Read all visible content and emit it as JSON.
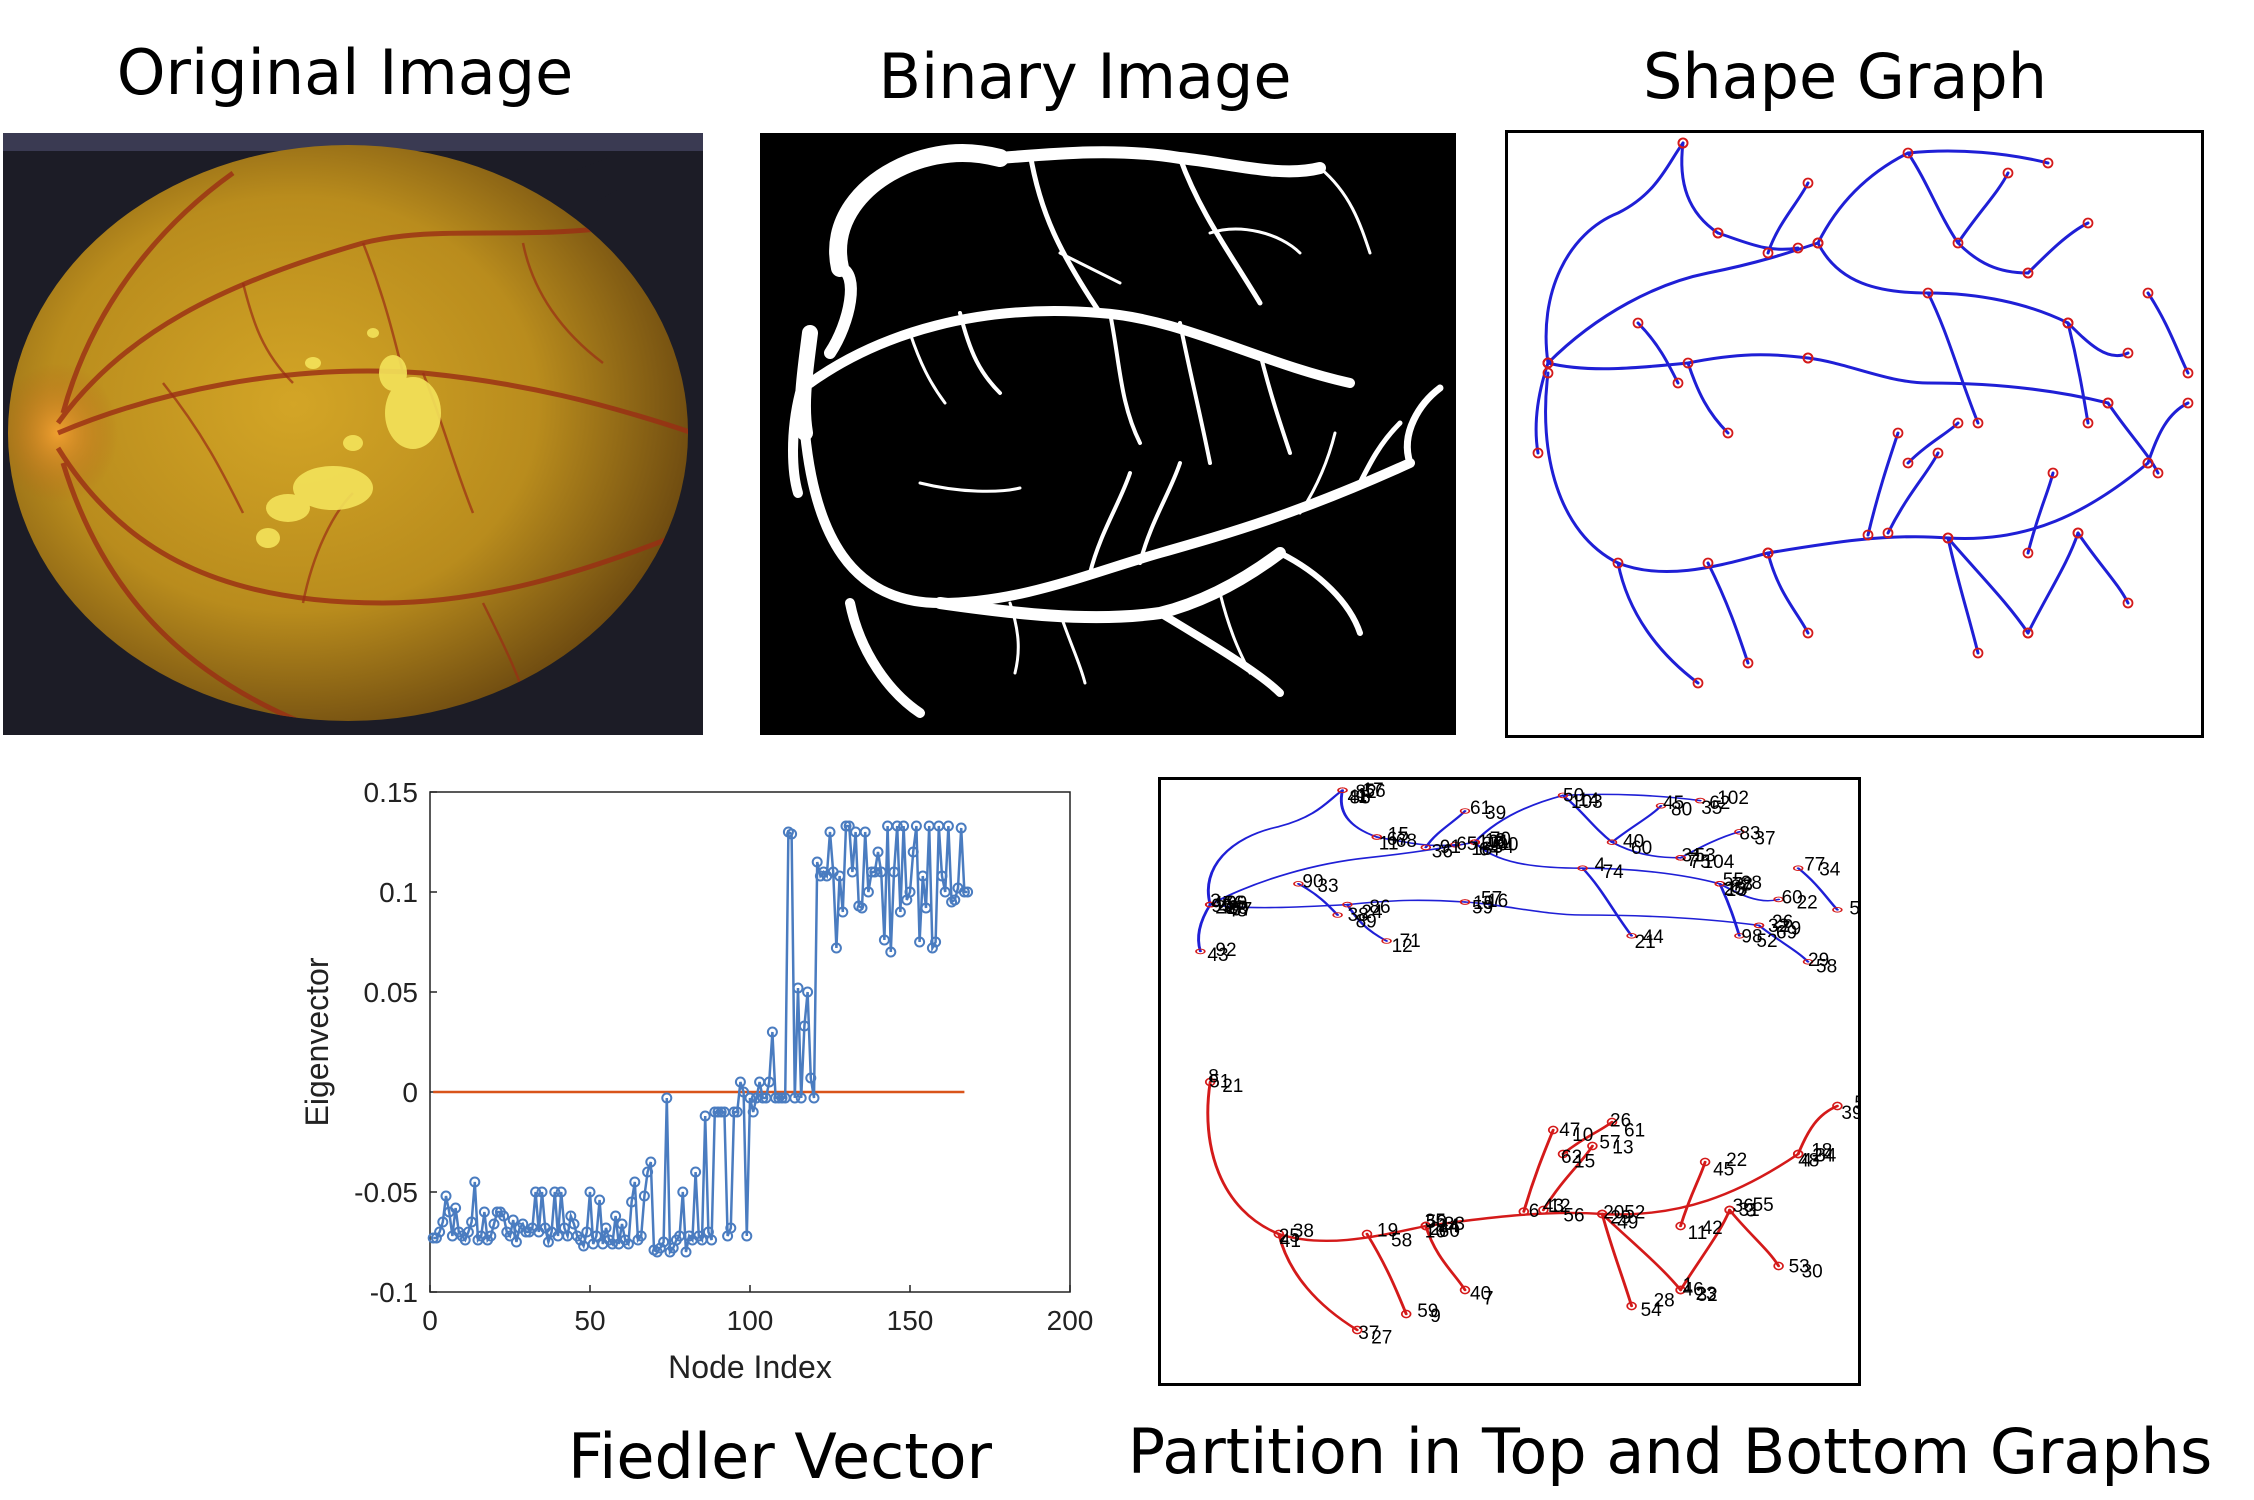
{
  "captions": {
    "original": "Original Image",
    "binary": "Binary Image",
    "shape": "Shape Graph",
    "fiedler": "Fiedler Vector",
    "partition": "Partition in Top and Bottom Graphs"
  },
  "colors": {
    "top_graph": "#1f1fd6",
    "bottom_graph": "#d41a1a",
    "node_marker": "#d41a1a",
    "fiedler_series": "#4a7cc0",
    "zero_line": "#d9541a",
    "retina_base": "#b48a1c",
    "exudate": "#f4e35a"
  },
  "icons": {
    "fundus": "retina-fundus-photo",
    "vessels": "vessel-segmentation-mask"
  },
  "chart_data": {
    "type": "line",
    "xlabel": "Node Index",
    "ylabel": "Eigenvector",
    "xlim": [
      0,
      200
    ],
    "ylim": [
      -0.1,
      0.15
    ],
    "xticks": [
      0,
      50,
      100,
      150,
      200
    ],
    "yticks": [
      -0.1,
      -0.05,
      0,
      0.05,
      0.1,
      0.15
    ],
    "ytick_labels": [
      "-0.1",
      "-0.05",
      "0",
      "0.05",
      "0.1",
      "0.15"
    ],
    "grid": false,
    "reference_line": {
      "y": 0,
      "x_range": [
        1,
        167
      ]
    },
    "series": [
      {
        "values": [
          -0.073,
          -0.073,
          -0.07,
          -0.065,
          -0.052,
          -0.06,
          -0.072,
          -0.058,
          -0.07,
          -0.072,
          -0.074,
          -0.07,
          -0.065,
          -0.045,
          -0.074,
          -0.072,
          -0.06,
          -0.074,
          -0.072,
          -0.066,
          -0.06,
          -0.06,
          -0.062,
          -0.07,
          -0.072,
          -0.064,
          -0.075,
          -0.068,
          -0.066,
          -0.07,
          -0.07,
          -0.068,
          -0.05,
          -0.07,
          -0.05,
          -0.068,
          -0.075,
          -0.07,
          -0.05,
          -0.072,
          -0.05,
          -0.068,
          -0.072,
          -0.062,
          -0.066,
          -0.072,
          -0.074,
          -0.077,
          -0.07,
          -0.05,
          -0.076,
          -0.072,
          -0.054,
          -0.076,
          -0.068,
          -0.074,
          -0.076,
          -0.062,
          -0.076,
          -0.066,
          -0.074,
          -0.076,
          -0.055,
          -0.045,
          -0.074,
          -0.072,
          -0.052,
          -0.04,
          -0.035,
          -0.079,
          -0.08,
          -0.078,
          -0.075,
          -0.003,
          -0.08,
          -0.078,
          -0.074,
          -0.072,
          -0.05,
          -0.08,
          -0.072,
          -0.074,
          -0.04,
          -0.072,
          -0.074,
          -0.012,
          -0.07,
          -0.074,
          -0.01,
          -0.01,
          -0.01,
          -0.01,
          -0.072,
          -0.068,
          -0.01,
          -0.01,
          0.005,
          0.0,
          -0.072,
          -0.003,
          -0.01,
          -0.003,
          0.005,
          -0.003,
          -0.003,
          0.005,
          0.03,
          -0.003,
          -0.003,
          -0.003,
          -0.003,
          0.13,
          0.129,
          -0.003,
          0.052,
          -0.003,
          0.033,
          0.05,
          0.007,
          -0.003,
          0.115,
          0.108,
          0.11,
          0.108,
          0.13,
          0.11,
          0.072,
          0.108,
          0.09,
          0.133,
          0.133,
          0.11,
          0.13,
          0.093,
          0.092,
          0.13,
          0.1,
          0.11,
          0.11,
          0.12,
          0.11,
          0.076,
          0.133,
          0.07,
          0.11,
          0.133,
          0.09,
          0.133,
          0.096,
          0.1,
          0.12,
          0.133,
          0.075,
          0.108,
          0.092,
          0.133,
          0.072,
          0.075,
          0.133,
          0.108,
          0.1,
          0.133,
          0.095,
          0.096,
          0.102,
          0.132,
          0.1,
          0.1
        ]
      }
    ]
  },
  "partition": {
    "top_labels": [
      "3",
      "1",
      "2",
      "9",
      "10",
      "35",
      "14",
      "7",
      "17",
      "15",
      "11",
      "18",
      "27",
      "28",
      "4",
      "21",
      "20",
      "19",
      "16",
      "26",
      "25",
      "22",
      "32",
      "29",
      "24",
      "12",
      "33",
      "38",
      "31",
      "37",
      "36",
      "39",
      "40",
      "45",
      "48",
      "43",
      "34",
      "51",
      "55",
      "52",
      "49",
      "56",
      "66",
      "64",
      "54",
      "62",
      "50",
      "53",
      "41",
      "68",
      "67",
      "65",
      "70",
      "13",
      "74",
      "44",
      "47",
      "57",
      "59",
      "79",
      "78",
      "60",
      "69",
      "58",
      "86",
      "71",
      "90",
      "89",
      "75",
      "83",
      "91",
      "61",
      "60",
      "80",
      "95",
      "92",
      "77",
      "96",
      "87",
      "98",
      "99",
      "88",
      "97",
      "100",
      "101",
      "102",
      "103",
      "104",
      "82"
    ],
    "bottom_labels": [
      "8",
      "14",
      "16",
      "18",
      "25",
      "27",
      "20",
      "23",
      "1",
      "3",
      "4",
      "5",
      "2",
      "7",
      "6",
      "10",
      "12",
      "13",
      "11",
      "22",
      "29",
      "28",
      "31",
      "30",
      "19",
      "9",
      "15",
      "26",
      "21",
      "35",
      "44",
      "48",
      "38",
      "37",
      "49",
      "46",
      "32",
      "36",
      "34",
      "39",
      "33",
      "40",
      "43",
      "47",
      "56",
      "57",
      "42",
      "45",
      "52",
      "54",
      "55",
      "53",
      "58",
      "59",
      "62",
      "61",
      "51",
      "60",
      "50",
      "24",
      "41"
    ]
  }
}
